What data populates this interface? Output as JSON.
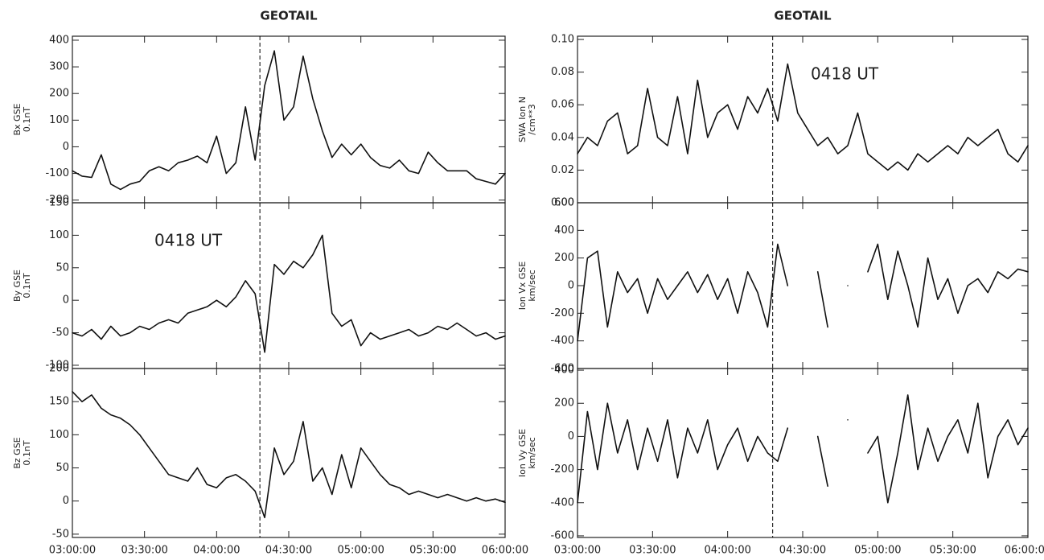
{
  "chart_data": [
    {
      "type": "line",
      "title": "GEOTAIL",
      "ylabel": [
        "Bx GSE",
        "0.1nT"
      ],
      "color": "#111111",
      "marker_x": 78,
      "x": [
        0,
        4,
        8,
        12,
        16,
        20,
        24,
        28,
        32,
        36,
        40,
        44,
        48,
        52,
        56,
        60,
        64,
        68,
        72,
        76,
        80,
        84,
        88,
        92,
        96,
        100,
        104,
        108,
        112,
        116,
        120,
        124,
        128,
        132,
        136,
        140,
        144,
        148,
        152,
        156,
        160,
        164,
        168,
        172,
        176,
        180
      ],
      "values": [
        -90,
        -110,
        -115,
        -30,
        -140,
        -160,
        -140,
        -130,
        -90,
        -75,
        -90,
        -60,
        -50,
        -35,
        -60,
        40,
        -100,
        -60,
        150,
        -50,
        230,
        360,
        100,
        150,
        340,
        180,
        60,
        -40,
        10,
        -30,
        10,
        -40,
        -70,
        -80,
        -50,
        -90,
        -100,
        -20,
        -60,
        -90,
        -90,
        -90,
        -120,
        -130,
        -140,
        -100
      ],
      "xlim": [
        0,
        180
      ],
      "xticks": [
        0,
        30,
        60,
        90,
        120,
        150,
        180
      ],
      "ylim": [
        -210,
        415
      ],
      "yticks": [
        -200,
        -100,
        0,
        100,
        200,
        300,
        400
      ]
    },
    {
      "type": "line",
      "ylabel": [
        "By GSE",
        "0.1nT"
      ],
      "color": "#111111",
      "marker_x": 78,
      "annotation": "0418 UT",
      "x": [
        0,
        4,
        8,
        12,
        16,
        20,
        24,
        28,
        32,
        36,
        40,
        44,
        48,
        52,
        56,
        60,
        64,
        68,
        72,
        76,
        80,
        84,
        88,
        92,
        96,
        100,
        104,
        108,
        112,
        116,
        120,
        124,
        128,
        132,
        136,
        140,
        144,
        148,
        152,
        156,
        160,
        164,
        168,
        172,
        176,
        180
      ],
      "values": [
        -50,
        -55,
        -45,
        -60,
        -40,
        -55,
        -50,
        -40,
        -45,
        -35,
        -30,
        -35,
        -20,
        -15,
        -10,
        0,
        -10,
        5,
        30,
        10,
        -80,
        55,
        40,
        60,
        50,
        70,
        100,
        -20,
        -40,
        -30,
        -70,
        -50,
        -60,
        -55,
        -50,
        -45,
        -55,
        -50,
        -40,
        -45,
        -35,
        -45,
        -55,
        -50,
        -60,
        -55
      ],
      "xlim": [
        0,
        180
      ],
      "xticks": [
        0,
        30,
        60,
        90,
        120,
        150,
        180
      ],
      "ylim": [
        -105,
        150
      ],
      "yticks": [
        -100,
        -50,
        0,
        50,
        100,
        150
      ]
    },
    {
      "type": "line",
      "ylabel": [
        "Bz GSE",
        "0.1nT"
      ],
      "color": "#111111",
      "marker_x": 78,
      "x": [
        0,
        4,
        8,
        12,
        16,
        20,
        24,
        28,
        32,
        36,
        40,
        44,
        48,
        52,
        56,
        60,
        64,
        68,
        72,
        76,
        80,
        84,
        88,
        92,
        96,
        100,
        104,
        108,
        112,
        116,
        120,
        124,
        128,
        132,
        136,
        140,
        144,
        148,
        152,
        156,
        160,
        164,
        168,
        172,
        176,
        180
      ],
      "values": [
        165,
        150,
        160,
        140,
        130,
        125,
        115,
        100,
        80,
        60,
        40,
        35,
        30,
        50,
        25,
        20,
        35,
        40,
        30,
        15,
        -25,
        80,
        40,
        60,
        120,
        30,
        50,
        10,
        70,
        20,
        80,
        60,
        40,
        25,
        20,
        10,
        15,
        10,
        5,
        10,
        5,
        0,
        5,
        0,
        3,
        -2
      ],
      "xlim": [
        0,
        180
      ],
      "xticks": [
        {
          "value": 0,
          "label": "03:00:00"
        },
        {
          "value": 30,
          "label": "03:30:00"
        },
        {
          "value": 60,
          "label": "04:00:00"
        },
        {
          "value": 90,
          "label": "04:30:00"
        },
        {
          "value": 120,
          "label": "05:00:00"
        },
        {
          "value": 150,
          "label": "05:30:00"
        },
        {
          "value": 180,
          "label": "06:00:00"
        }
      ],
      "ylim": [
        -55,
        200
      ],
      "yticks": [
        -50,
        0,
        50,
        100,
        150,
        200
      ]
    },
    {
      "type": "line",
      "title": "GEOTAIL",
      "ylabel": [
        "SWA Ion N",
        "/cm**3"
      ],
      "color": "#111111",
      "marker_x": 78,
      "annotation": "0418 UT",
      "x": [
        0,
        4,
        8,
        12,
        16,
        20,
        24,
        28,
        32,
        36,
        40,
        44,
        48,
        52,
        56,
        60,
        64,
        68,
        72,
        76,
        80,
        84,
        88,
        92,
        96,
        100,
        104,
        108,
        112,
        116,
        120,
        124,
        128,
        132,
        136,
        140,
        144,
        148,
        152,
        156,
        160,
        164,
        168,
        172,
        176,
        180
      ],
      "values": [
        0.03,
        0.04,
        0.035,
        0.05,
        0.055,
        0.03,
        0.035,
        0.07,
        0.04,
        0.035,
        0.065,
        0.03,
        0.075,
        0.04,
        0.055,
        0.06,
        0.045,
        0.065,
        0.055,
        0.07,
        0.05,
        0.085,
        0.055,
        0.045,
        0.035,
        0.04,
        0.03,
        0.035,
        0.055,
        0.03,
        0.025,
        0.02,
        0.025,
        0.02,
        0.03,
        0.025,
        0.03,
        0.035,
        0.03,
        0.04,
        0.035,
        0.04,
        0.045,
        0.03,
        0.025,
        0.035
      ],
      "xlim": [
        0,
        180
      ],
      "xticks": [
        0,
        30,
        60,
        90,
        120,
        150,
        180
      ],
      "ylim": [
        0,
        0.102
      ],
      "yticks": [
        {
          "value": 0,
          "label": "0.00"
        },
        {
          "value": 0.02,
          "label": "0.02"
        },
        {
          "value": 0.04,
          "label": "0.04"
        },
        {
          "value": 0.06,
          "label": "0.06"
        },
        {
          "value": 0.08,
          "label": "0.08"
        },
        {
          "value": 0.1,
          "label": "0.10"
        }
      ]
    },
    {
      "type": "line",
      "ylabel": [
        "Ion Vx GSE",
        "km/sec"
      ],
      "color": "#111111",
      "marker_x": 78,
      "x": [
        0,
        4,
        8,
        12,
        16,
        20,
        24,
        28,
        32,
        36,
        40,
        44,
        48,
        52,
        56,
        60,
        64,
        68,
        72,
        76,
        80,
        84,
        88,
        92,
        96,
        100,
        104,
        108,
        112,
        116,
        120,
        124,
        128,
        132,
        136,
        140,
        144,
        148,
        152,
        156,
        160,
        164,
        168,
        172,
        176,
        180
      ],
      "values": [
        -400,
        200,
        250,
        -300,
        100,
        -50,
        50,
        -200,
        50,
        -100,
        0,
        100,
        -50,
        80,
        -100,
        50,
        -200,
        100,
        -50,
        -300,
        300,
        0,
        null,
        null,
        100,
        -300,
        null,
        0,
        null,
        100,
        300,
        -100,
        250,
        0,
        -300,
        200,
        -100,
        50,
        -200,
        0,
        50,
        -50,
        100,
        50,
        120,
        100
      ],
      "xlim": [
        0,
        180
      ],
      "xticks": [
        0,
        30,
        60,
        90,
        120,
        150,
        180
      ],
      "ylim": [
        -600,
        600
      ],
      "yticks": [
        -600,
        -400,
        -200,
        0,
        200,
        400,
        600
      ]
    },
    {
      "type": "line",
      "ylabel": [
        "Ion Vy GSE",
        "km/sec"
      ],
      "color": "#111111",
      "marker_x": 78,
      "x": [
        0,
        4,
        8,
        12,
        16,
        20,
        24,
        28,
        32,
        36,
        40,
        44,
        48,
        52,
        56,
        60,
        64,
        68,
        72,
        76,
        80,
        84,
        88,
        92,
        96,
        100,
        104,
        108,
        112,
        116,
        120,
        124,
        128,
        132,
        136,
        140,
        144,
        148,
        152,
        156,
        160,
        164,
        168,
        172,
        176,
        180
      ],
      "values": [
        -400,
        150,
        -200,
        200,
        -100,
        100,
        -200,
        50,
        -150,
        100,
        -250,
        50,
        -100,
        100,
        -200,
        -50,
        50,
        -150,
        0,
        -100,
        -150,
        50,
        null,
        null,
        0,
        -300,
        null,
        100,
        null,
        -100,
        0,
        -400,
        -100,
        250,
        -200,
        50,
        -150,
        0,
        100,
        -100,
        200,
        -250,
        0,
        100,
        -50,
        50
      ],
      "xlim": [
        0,
        180
      ],
      "xticks": [
        {
          "value": 0,
          "label": "03:00:00"
        },
        {
          "value": 30,
          "label": "03:30:00"
        },
        {
          "value": 60,
          "label": "04:00:00"
        },
        {
          "value": 90,
          "label": "04:30:00"
        },
        {
          "value": 120,
          "label": "05:00:00"
        },
        {
          "value": 150,
          "label": "05:30:00"
        },
        {
          "value": 180,
          "label": "06:00:00"
        }
      ],
      "ylim": [
        -610,
        410
      ],
      "yticks": [
        -600,
        -400,
        -200,
        0,
        200,
        400
      ]
    }
  ]
}
